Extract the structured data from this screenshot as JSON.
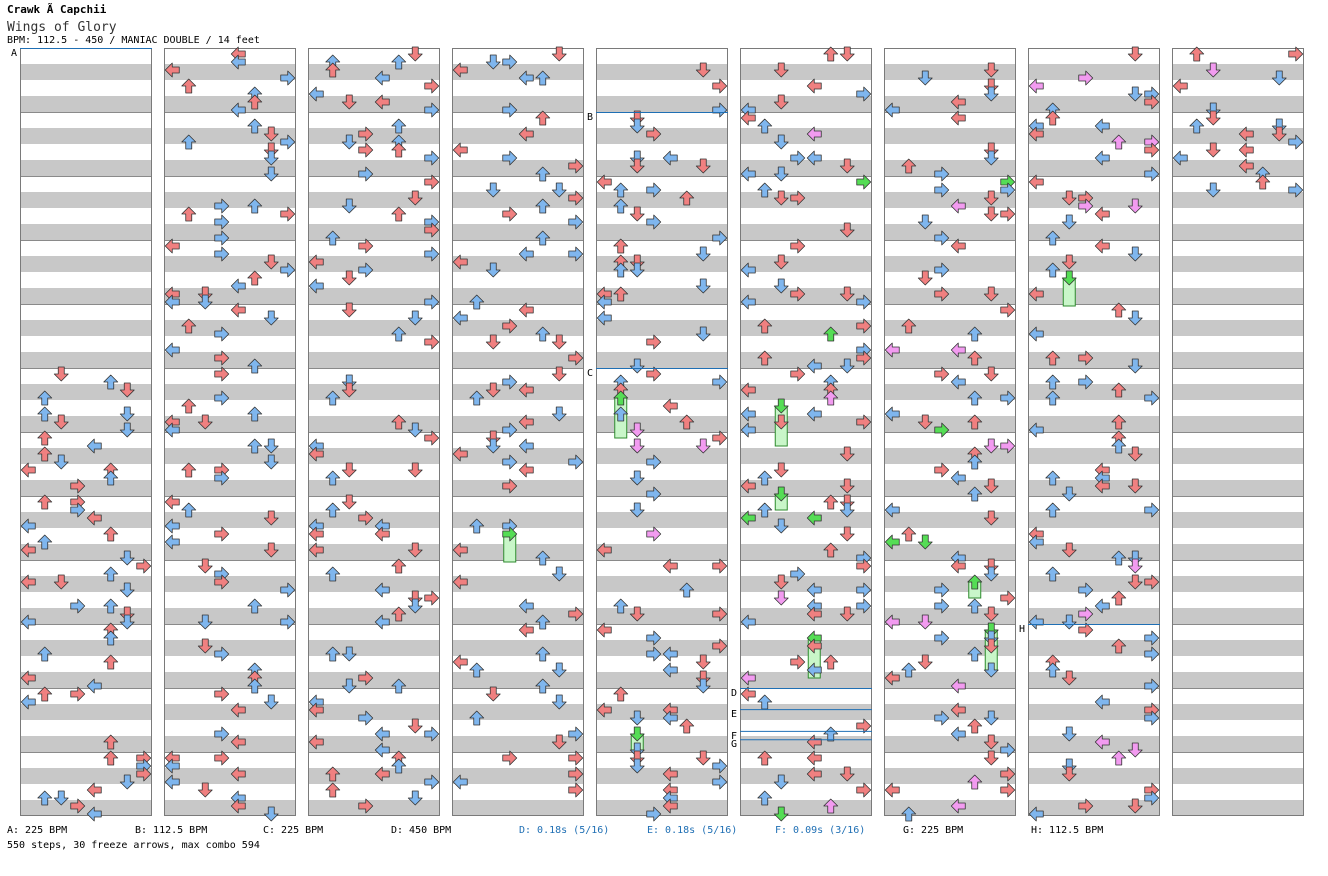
{
  "song": {
    "artist": "Crawk Ã  Capchii",
    "title": "Wings of Glory",
    "info": "BPM: 112.5 - 450 / MANIAC DOUBLE / 14 feet"
  },
  "colors": {
    "background": "#ffffff",
    "shaded_band": "#c8c8c8",
    "column_border": "#7a7a7a",
    "quarter_note": "#f08080",
    "eighth_note": "#7fb6ee",
    "sixteenth_note": "#f29bf0",
    "twelfth_note": "#e8de4f",
    "freeze_body": "#c9f6c9",
    "freeze_edge": "#2e8b2e",
    "freeze_head": "#55dd55",
    "marker_line": "#1f6fb4"
  },
  "markers": [
    {
      "label": "A",
      "column": 0,
      "measure": 0
    },
    {
      "label": "B",
      "column": 4,
      "measure": 1
    },
    {
      "label": "C",
      "column": 4,
      "measure": 5
    },
    {
      "label": "D",
      "column": 5,
      "measure": 10
    },
    {
      "label": "E",
      "column": 5,
      "measure": 10.33
    },
    {
      "label": "F",
      "column": 5,
      "measure": 10.67
    },
    {
      "label": "G",
      "column": 5,
      "measure": 10.8
    },
    {
      "label": "H",
      "column": 7,
      "measure": 9
    }
  ],
  "legend": [
    {
      "text": "A: 225 BPM",
      "kind": "bpm"
    },
    {
      "text": "B: 112.5 BPM",
      "kind": "bpm"
    },
    {
      "text": "C: 225 BPM",
      "kind": "bpm"
    },
    {
      "text": "D: 450 BPM",
      "kind": "bpm"
    },
    {
      "text": "D: 0.18s (5/16)",
      "kind": "stop"
    },
    {
      "text": "E: 0.18s (5/16)",
      "kind": "stop"
    },
    {
      "text": "F: 0.09s (3/16)",
      "kind": "stop"
    },
    {
      "text": "G: 225 BPM",
      "kind": "bpm"
    },
    {
      "text": "H: 112.5 BPM",
      "kind": "bpm"
    }
  ],
  "stats": "550 steps, 30 freeze arrows, max combo 594"
}
